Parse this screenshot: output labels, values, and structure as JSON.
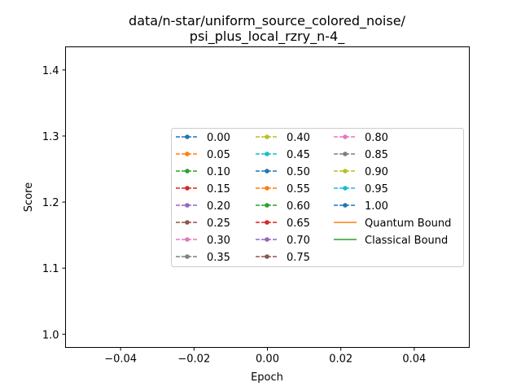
{
  "chart_data": {
    "type": "line",
    "title_lines": [
      "data/n-star/uniform_source_colored_noise/",
      "psi_plus_local_rzry_n-4_"
    ],
    "xlabel": "Epoch",
    "ylabel": "Score",
    "xlim": [
      -0.055,
      0.055
    ],
    "ylim": [
      0.98,
      1.435
    ],
    "x_ticks": [
      -0.04,
      -0.02,
      0.0,
      0.02,
      0.04
    ],
    "x_tick_labels": [
      "−0.04",
      "−0.02",
      "0.00",
      "0.02",
      "0.04"
    ],
    "y_ticks": [
      1.0,
      1.1,
      1.2,
      1.3,
      1.4
    ],
    "y_tick_labels": [
      "1.0",
      "1.1",
      "1.2",
      "1.3",
      "1.4"
    ],
    "grid": false,
    "legend_location": "center-right",
    "series": [
      {
        "name": "0.00",
        "color": "#1f77b4",
        "style": "dashed-marker",
        "x": [],
        "y": []
      },
      {
        "name": "0.05",
        "color": "#ff7f0e",
        "style": "dashed-marker",
        "x": [],
        "y": []
      },
      {
        "name": "0.10",
        "color": "#2ca02c",
        "style": "dashed-marker",
        "x": [],
        "y": []
      },
      {
        "name": "0.15",
        "color": "#d62728",
        "style": "dashed-marker",
        "x": [],
        "y": []
      },
      {
        "name": "0.20",
        "color": "#9467bd",
        "style": "dashed-marker",
        "x": [],
        "y": []
      },
      {
        "name": "0.25",
        "color": "#8c564b",
        "style": "dashed-marker",
        "x": [],
        "y": []
      },
      {
        "name": "0.30",
        "color": "#e377c2",
        "style": "dashed-marker",
        "x": [],
        "y": []
      },
      {
        "name": "0.35",
        "color": "#7f7f7f",
        "style": "dashed-marker",
        "x": [],
        "y": []
      },
      {
        "name": "0.40",
        "color": "#bcbd22",
        "style": "dashed-marker",
        "x": [],
        "y": []
      },
      {
        "name": "0.45",
        "color": "#17becf",
        "style": "dashed-marker",
        "x": [],
        "y": []
      },
      {
        "name": "0.50",
        "color": "#1f77b4",
        "style": "dashed-marker",
        "x": [],
        "y": []
      },
      {
        "name": "0.55",
        "color": "#ff7f0e",
        "style": "dashed-marker",
        "x": [],
        "y": []
      },
      {
        "name": "0.60",
        "color": "#2ca02c",
        "style": "dashed-marker",
        "x": [],
        "y": []
      },
      {
        "name": "0.65",
        "color": "#d62728",
        "style": "dashed-marker",
        "x": [],
        "y": []
      },
      {
        "name": "0.70",
        "color": "#9467bd",
        "style": "dashed-marker",
        "x": [],
        "y": []
      },
      {
        "name": "0.75",
        "color": "#8c564b",
        "style": "dashed-marker",
        "x": [],
        "y": []
      },
      {
        "name": "0.80",
        "color": "#e377c2",
        "style": "dashed-marker",
        "x": [],
        "y": []
      },
      {
        "name": "0.85",
        "color": "#7f7f7f",
        "style": "dashed-marker",
        "x": [],
        "y": []
      },
      {
        "name": "0.90",
        "color": "#bcbd22",
        "style": "dashed-marker",
        "x": [],
        "y": []
      },
      {
        "name": "0.95",
        "color": "#17becf",
        "style": "dashed-marker",
        "x": [],
        "y": []
      },
      {
        "name": "1.00",
        "color": "#1f77b4",
        "style": "dashed-marker",
        "x": [],
        "y": []
      },
      {
        "name": "Quantum Bound",
        "color": "#ff7f0e",
        "style": "solid",
        "x": [],
        "y": []
      },
      {
        "name": "Classical Bound",
        "color": "#2ca02c",
        "style": "solid",
        "x": [],
        "y": []
      }
    ]
  }
}
